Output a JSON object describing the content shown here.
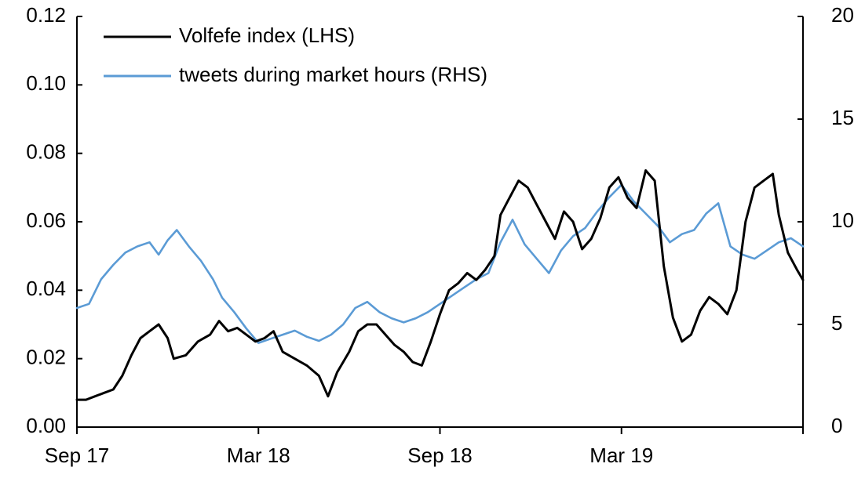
{
  "chart_data": {
    "type": "line",
    "title": "",
    "legend_position": "top-left",
    "x_tick_labels": [
      "Sep 17",
      "Mar 18",
      "Sep 18",
      "Mar 19"
    ],
    "x_range": [
      0,
      24
    ],
    "y_left": {
      "min": 0,
      "max": 0.12,
      "ticks": [
        "0.00",
        "0.02",
        "0.04",
        "0.06",
        "0.08",
        "0.10",
        "0.12"
      ]
    },
    "y_right": {
      "min": 0,
      "max": 20,
      "ticks": [
        "0",
        "5",
        "10",
        "15",
        "20"
      ]
    },
    "series": [
      {
        "name": "Volfefe index (LHS)",
        "axis": "left",
        "color": "#000000",
        "points": [
          [
            0.0,
            0.008
          ],
          [
            0.3,
            0.008
          ],
          [
            0.6,
            0.009
          ],
          [
            0.9,
            0.01
          ],
          [
            1.2,
            0.011
          ],
          [
            1.5,
            0.015
          ],
          [
            1.8,
            0.021
          ],
          [
            2.1,
            0.026
          ],
          [
            2.4,
            0.028
          ],
          [
            2.7,
            0.03
          ],
          [
            3.0,
            0.026
          ],
          [
            3.2,
            0.02
          ],
          [
            3.6,
            0.021
          ],
          [
            4.0,
            0.025
          ],
          [
            4.4,
            0.027
          ],
          [
            4.7,
            0.031
          ],
          [
            5.0,
            0.028
          ],
          [
            5.3,
            0.029
          ],
          [
            5.6,
            0.027
          ],
          [
            5.9,
            0.025
          ],
          [
            6.2,
            0.026
          ],
          [
            6.5,
            0.028
          ],
          [
            6.8,
            0.022
          ],
          [
            7.2,
            0.02
          ],
          [
            7.6,
            0.018
          ],
          [
            8.0,
            0.015
          ],
          [
            8.3,
            0.009
          ],
          [
            8.6,
            0.016
          ],
          [
            9.0,
            0.022
          ],
          [
            9.3,
            0.028
          ],
          [
            9.6,
            0.03
          ],
          [
            9.9,
            0.03
          ],
          [
            10.2,
            0.027
          ],
          [
            10.5,
            0.024
          ],
          [
            10.8,
            0.022
          ],
          [
            11.1,
            0.019
          ],
          [
            11.4,
            0.018
          ],
          [
            11.7,
            0.025
          ],
          [
            12.0,
            0.033
          ],
          [
            12.3,
            0.04
          ],
          [
            12.6,
            0.042
          ],
          [
            12.9,
            0.045
          ],
          [
            13.2,
            0.043
          ],
          [
            13.5,
            0.046
          ],
          [
            13.8,
            0.05
          ],
          [
            14.0,
            0.062
          ],
          [
            14.3,
            0.067
          ],
          [
            14.6,
            0.072
          ],
          [
            14.9,
            0.07
          ],
          [
            15.2,
            0.065
          ],
          [
            15.5,
            0.06
          ],
          [
            15.8,
            0.055
          ],
          [
            16.1,
            0.063
          ],
          [
            16.4,
            0.06
          ],
          [
            16.7,
            0.052
          ],
          [
            17.0,
            0.055
          ],
          [
            17.3,
            0.061
          ],
          [
            17.6,
            0.07
          ],
          [
            17.9,
            0.073
          ],
          [
            18.2,
            0.067
          ],
          [
            18.5,
            0.064
          ],
          [
            18.8,
            0.075
          ],
          [
            19.1,
            0.072
          ],
          [
            19.4,
            0.047
          ],
          [
            19.7,
            0.032
          ],
          [
            20.0,
            0.025
          ],
          [
            20.3,
            0.027
          ],
          [
            20.6,
            0.034
          ],
          [
            20.9,
            0.038
          ],
          [
            21.2,
            0.036
          ],
          [
            21.5,
            0.033
          ],
          [
            21.8,
            0.04
          ],
          [
            22.1,
            0.06
          ],
          [
            22.4,
            0.07
          ],
          [
            22.7,
            0.072
          ],
          [
            23.0,
            0.074
          ],
          [
            23.2,
            0.062
          ],
          [
            23.5,
            0.051
          ],
          [
            23.8,
            0.046
          ],
          [
            24.0,
            0.043
          ]
        ]
      },
      {
        "name": "tweets during market hours (RHS)",
        "axis": "right",
        "color": "#5b9bd5",
        "points": [
          [
            0.0,
            5.8
          ],
          [
            0.4,
            6.0
          ],
          [
            0.8,
            7.2
          ],
          [
            1.2,
            7.9
          ],
          [
            1.6,
            8.5
          ],
          [
            2.0,
            8.8
          ],
          [
            2.4,
            9.0
          ],
          [
            2.7,
            8.4
          ],
          [
            3.0,
            9.1
          ],
          [
            3.3,
            9.6
          ],
          [
            3.7,
            8.8
          ],
          [
            4.1,
            8.1
          ],
          [
            4.5,
            7.2
          ],
          [
            4.8,
            6.3
          ],
          [
            5.2,
            5.6
          ],
          [
            5.6,
            4.8
          ],
          [
            6.0,
            4.1
          ],
          [
            6.4,
            4.3
          ],
          [
            6.8,
            4.5
          ],
          [
            7.2,
            4.7
          ],
          [
            7.6,
            4.4
          ],
          [
            8.0,
            4.2
          ],
          [
            8.4,
            4.5
          ],
          [
            8.8,
            5.0
          ],
          [
            9.2,
            5.8
          ],
          [
            9.6,
            6.1
          ],
          [
            10.0,
            5.6
          ],
          [
            10.4,
            5.3
          ],
          [
            10.8,
            5.1
          ],
          [
            11.2,
            5.3
          ],
          [
            11.6,
            5.6
          ],
          [
            12.0,
            6.0
          ],
          [
            12.4,
            6.4
          ],
          [
            12.8,
            6.8
          ],
          [
            13.2,
            7.2
          ],
          [
            13.6,
            7.5
          ],
          [
            14.0,
            9.0
          ],
          [
            14.4,
            10.1
          ],
          [
            14.8,
            8.9
          ],
          [
            15.2,
            8.2
          ],
          [
            15.6,
            7.5
          ],
          [
            16.0,
            8.6
          ],
          [
            16.4,
            9.3
          ],
          [
            16.8,
            9.7
          ],
          [
            17.2,
            10.5
          ],
          [
            17.6,
            11.2
          ],
          [
            18.0,
            11.8
          ],
          [
            18.4,
            11.0
          ],
          [
            18.8,
            10.4
          ],
          [
            19.2,
            9.8
          ],
          [
            19.6,
            9.0
          ],
          [
            20.0,
            9.4
          ],
          [
            20.4,
            9.6
          ],
          [
            20.8,
            10.4
          ],
          [
            21.2,
            10.9
          ],
          [
            21.6,
            8.8
          ],
          [
            22.0,
            8.4
          ],
          [
            22.4,
            8.2
          ],
          [
            22.8,
            8.6
          ],
          [
            23.2,
            9.0
          ],
          [
            23.6,
            9.2
          ],
          [
            24.0,
            8.8
          ]
        ]
      }
    ]
  }
}
